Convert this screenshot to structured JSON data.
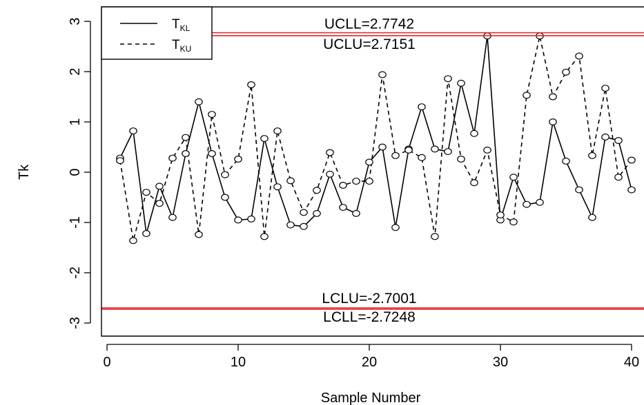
{
  "chart_data": {
    "type": "line",
    "xlabel": "Sample Number",
    "ylabel": "Tk",
    "xlim": [
      0,
      40
    ],
    "ylim": [
      -3,
      3
    ],
    "x_ticks": [
      "0",
      "10",
      "20",
      "30",
      "40"
    ],
    "y_ticks": [
      "-3",
      "-2",
      "-1",
      "0",
      "1",
      "2",
      "3"
    ],
    "x": [
      1,
      2,
      3,
      4,
      5,
      6,
      7,
      8,
      9,
      10,
      11,
      12,
      13,
      14,
      15,
      16,
      17,
      18,
      19,
      20,
      21,
      22,
      23,
      24,
      25,
      26,
      27,
      28,
      29,
      30,
      31,
      32,
      33,
      34,
      35,
      36,
      37,
      38,
      39,
      40
    ],
    "series": [
      {
        "name": "T_KL",
        "name_main": "T",
        "name_sub": "KL",
        "line_style": "solid",
        "values": [
          0.28,
          0.82,
          -1.22,
          -0.28,
          -0.9,
          0.37,
          1.4,
          0.37,
          -0.5,
          -0.95,
          -0.93,
          0.67,
          -0.29,
          -1.05,
          -1.08,
          -0.82,
          -0.04,
          -0.7,
          -0.82,
          0.2,
          0.5,
          -1.1,
          0.46,
          1.3,
          0.46,
          0.41,
          1.77,
          0.77,
          2.71,
          -0.95,
          -0.1,
          -0.64,
          -0.6,
          1.0,
          0.22,
          -0.35,
          -0.9,
          0.7,
          0.63,
          -0.35
        ]
      },
      {
        "name": "T_KU",
        "name_main": "T",
        "name_sub": "KU",
        "line_style": "dashed",
        "values": [
          0.23,
          -1.36,
          -0.4,
          -0.62,
          0.28,
          0.69,
          -1.24,
          1.15,
          -0.05,
          0.26,
          1.74,
          -1.28,
          0.82,
          -0.17,
          -0.8,
          -0.36,
          0.39,
          -0.26,
          -0.18,
          -0.18,
          1.94,
          0.33,
          0.44,
          0.29,
          -1.28,
          1.86,
          0.26,
          -0.21,
          0.44,
          -0.85,
          -0.99,
          1.53,
          2.71,
          1.5,
          1.99,
          2.31,
          0.33,
          1.67,
          -0.1,
          0.24
        ]
      }
    ],
    "reference_lines": [
      {
        "label": "UCLL=2.7742",
        "value": 2.7742
      },
      {
        "label": "UCLU=2.7151",
        "value": 2.7151
      },
      {
        "label": "LCLU=-2.7001",
        "value": -2.7001
      },
      {
        "label": "LCLL=-2.7248",
        "value": -2.7248
      }
    ],
    "reference_color": "#e8262a",
    "series_color": "#000000",
    "legend_position": "top-left",
    "grid": false
  }
}
